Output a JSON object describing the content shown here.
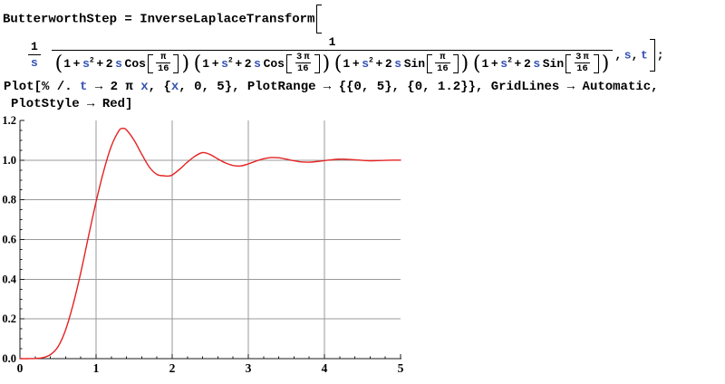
{
  "app": {
    "title": "Mathematica notebook – Butterworth step response"
  },
  "colors": {
    "code_text": "#000000",
    "code_symbol_blue": "#3452b4",
    "plot_red": "#e52222",
    "grid_gray": "#989898",
    "axis_black": "#1a1a1a"
  },
  "code_lines": [
    {
      "name": "input-line-1",
      "tokens": [
        {
          "t": "txt",
          "v": "ButterworthStep = InverseLaplaceTransform"
        },
        {
          "t": "lb",
          "h": 30
        }
      ]
    },
    {
      "name": "input-line-2",
      "tokens": [
        {
          "t": "frac",
          "n": [
            {
              "t": "txt",
              "v": "1"
            }
          ],
          "d": [
            {
              "t": "txt",
              "v": "s",
              "c": "b"
            }
          ]
        },
        {
          "t": "txt",
          "v": " "
        },
        {
          "t": "frac",
          "n": [
            {
              "t": "txt",
              "v": "1"
            }
          ],
          "d": [
            {
              "t": "paren",
              "v": "("
            },
            {
              "t": "txt",
              "v": "1 + "
            },
            {
              "t": "txt",
              "v": "s",
              "c": "b"
            },
            {
              "t": "sup",
              "v": "2"
            },
            {
              "t": "txt",
              "v": " + 2 "
            },
            {
              "t": "txt",
              "v": "s",
              "c": "b"
            },
            {
              "t": "txt",
              "v": " Cos"
            },
            {
              "t": "lb",
              "h": 19
            },
            {
              "t": "frac",
              "s": 1,
              "n": [
                {
                  "t": "txt",
                  "v": "π"
                }
              ],
              "d": [
                {
                  "t": "txt",
                  "v": "16"
                }
              ]
            },
            {
              "t": "rb",
              "h": 19
            },
            {
              "t": "paren",
              "v": ")"
            },
            {
              "t": "txt",
              "v": " "
            },
            {
              "t": "paren",
              "v": "("
            },
            {
              "t": "txt",
              "v": "1 + "
            },
            {
              "t": "txt",
              "v": "s",
              "c": "b"
            },
            {
              "t": "sup",
              "v": "2"
            },
            {
              "t": "txt",
              "v": " + 2 "
            },
            {
              "t": "txt",
              "v": "s",
              "c": "b"
            },
            {
              "t": "txt",
              "v": " Cos"
            },
            {
              "t": "lb",
              "h": 19
            },
            {
              "t": "frac",
              "s": 1,
              "n": [
                {
                  "t": "txt",
                  "v": "3 π"
                }
              ],
              "d": [
                {
                  "t": "txt",
                  "v": "16"
                }
              ]
            },
            {
              "t": "rb",
              "h": 19
            },
            {
              "t": "paren",
              "v": ")"
            },
            {
              "t": "txt",
              "v": " "
            },
            {
              "t": "paren",
              "v": "("
            },
            {
              "t": "txt",
              "v": "1 + "
            },
            {
              "t": "txt",
              "v": "s",
              "c": "b"
            },
            {
              "t": "sup",
              "v": "2"
            },
            {
              "t": "txt",
              "v": " + 2 "
            },
            {
              "t": "txt",
              "v": "s",
              "c": "b"
            },
            {
              "t": "txt",
              "v": " Sin"
            },
            {
              "t": "lb",
              "h": 19
            },
            {
              "t": "frac",
              "s": 1,
              "n": [
                {
                  "t": "txt",
                  "v": "π"
                }
              ],
              "d": [
                {
                  "t": "txt",
                  "v": "16"
                }
              ]
            },
            {
              "t": "rb",
              "h": 19
            },
            {
              "t": "paren",
              "v": ")"
            },
            {
              "t": "txt",
              "v": " "
            },
            {
              "t": "paren",
              "v": "("
            },
            {
              "t": "txt",
              "v": "1 + "
            },
            {
              "t": "txt",
              "v": "s",
              "c": "b"
            },
            {
              "t": "sup",
              "v": "2"
            },
            {
              "t": "txt",
              "v": " + 2 "
            },
            {
              "t": "txt",
              "v": "s",
              "c": "b"
            },
            {
              "t": "txt",
              "v": " Sin"
            },
            {
              "t": "lb",
              "h": 19
            },
            {
              "t": "frac",
              "s": 1,
              "n": [
                {
                  "t": "txt",
                  "v": "3 π"
                }
              ],
              "d": [
                {
                  "t": "txt",
                  "v": "16"
                }
              ]
            },
            {
              "t": "rb",
              "h": 19
            },
            {
              "t": "paren",
              "v": ")"
            }
          ]
        },
        {
          "t": "txt",
          "v": ", "
        },
        {
          "t": "txt",
          "v": "s",
          "c": "b"
        },
        {
          "t": "txt",
          "v": ", "
        },
        {
          "t": "txt",
          "v": "t",
          "c": "b"
        },
        {
          "t": "rb",
          "h": 34
        },
        {
          "t": "txt",
          "v": ";"
        }
      ]
    },
    {
      "name": "input-line-3",
      "tokens": [
        {
          "t": "txt",
          "v": "Plot[% /. "
        },
        {
          "t": "txt",
          "v": "t",
          "c": "b"
        },
        {
          "t": "txt",
          "v": " → 2 π "
        },
        {
          "t": "txt",
          "v": "x",
          "c": "b"
        },
        {
          "t": "txt",
          "v": ", {"
        },
        {
          "t": "txt",
          "v": "x",
          "c": "b"
        },
        {
          "t": "txt",
          "v": ", 0, 5}, PlotRange → {{0, 5}, {0, 1.2}}, GridLines → Automatic,"
        }
      ]
    },
    {
      "name": "input-line-4",
      "tokens": [
        {
          "t": "txt",
          "v": "PlotStyle → Red]"
        }
      ]
    }
  ],
  "chart_data": {
    "type": "line",
    "title": "",
    "xlabel": "",
    "ylabel": "",
    "xlim": [
      0,
      5
    ],
    "ylim": [
      0,
      1.2
    ],
    "xticks": [
      0,
      1,
      2,
      3,
      4,
      5
    ],
    "xtick_labels": [
      "0",
      "1",
      "2",
      "3",
      "4",
      "5"
    ],
    "yticks": [
      0,
      0.2,
      0.4,
      0.6,
      0.8,
      1.0,
      1.2
    ],
    "ytick_labels": [
      "0.0",
      "0.2",
      "0.4",
      "0.6",
      "0.8",
      "1.0",
      "1.2"
    ],
    "x_major_step": 1,
    "x_minor_step": 0.2,
    "y_major_step": 0.2,
    "y_minor_step": 0.05,
    "grid_x": [
      1,
      2,
      3,
      4
    ],
    "grid_y": [
      0.2,
      0.4,
      0.6,
      0.8,
      1.0
    ],
    "grid_on": true,
    "legend": "none",
    "series": [
      {
        "name": "ButterworthStep /. t -> 2 pi x",
        "color": "#e52222",
        "x": [
          0,
          0.1,
          0.2,
          0.3,
          0.4,
          0.5,
          0.6,
          0.7,
          0.8,
          0.9,
          1.0,
          1.1,
          1.2,
          1.3,
          1.35,
          1.4,
          1.5,
          1.6,
          1.7,
          1.8,
          1.9,
          1.95,
          2.0,
          2.1,
          2.2,
          2.3,
          2.4,
          2.5,
          2.6,
          2.7,
          2.8,
          2.9,
          3.0,
          3.1,
          3.2,
          3.3,
          3.4,
          3.5,
          3.6,
          3.7,
          3.8,
          3.9,
          4.0,
          4.1,
          4.2,
          4.3,
          4.4,
          4.5,
          4.6,
          4.7,
          4.8,
          4.9,
          5.0
        ],
        "y": [
          0,
          0,
          0.001,
          0.005,
          0.02,
          0.06,
          0.145,
          0.275,
          0.435,
          0.615,
          0.79,
          0.945,
          1.07,
          1.148,
          1.16,
          1.152,
          1.1,
          1.03,
          0.965,
          0.928,
          0.921,
          0.92,
          0.925,
          0.955,
          0.99,
          1.02,
          1.038,
          1.028,
          1.006,
          0.986,
          0.973,
          0.971,
          0.981,
          0.995,
          1.007,
          1.013,
          1.012,
          1.005,
          0.997,
          0.991,
          0.99,
          0.993,
          0.998,
          1.002,
          1.005,
          1.004,
          1.002,
          0.999,
          0.997,
          0.998,
          0.999,
          1.0,
          1.0
        ]
      }
    ]
  }
}
